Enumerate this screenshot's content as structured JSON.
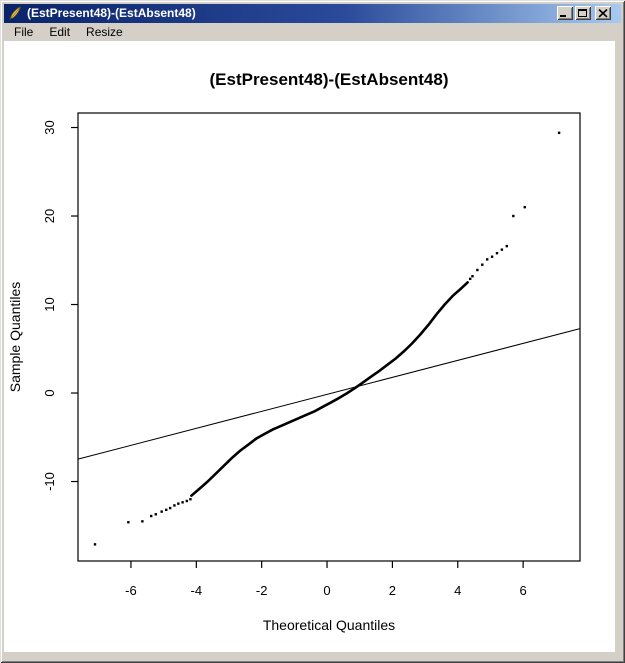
{
  "window": {
    "title": "(EstPresent48)-(EstAbsent48)",
    "icon": "quill-feather",
    "buttons": {
      "minimize": "minimize",
      "maximize": "maximize",
      "close": "close"
    }
  },
  "menu": {
    "items": [
      {
        "label": "File"
      },
      {
        "label": "Edit"
      },
      {
        "label": "Resize"
      }
    ]
  },
  "colors": {
    "titlebar_left": "#0A246A",
    "titlebar_right": "#A6CAF0",
    "chrome": "#D4D0C8",
    "canvas": "#FFFFFF",
    "plot_foreground": "#000000",
    "title_text": "#FFFFFF"
  },
  "chart_data": {
    "type": "scatter",
    "subtype": "normal-qq-plot",
    "title": "(EstPresent48)-(EstAbsent48)",
    "xlabel": "Theoretical Quantiles",
    "ylabel": "Sample Quantiles",
    "x_ticks": [
      -6,
      -4,
      -2,
      0,
      2,
      4,
      6
    ],
    "y_ticks": [
      -10,
      0,
      10,
      20,
      30
    ],
    "xlim": [
      -7.62,
      7.74
    ],
    "ylim": [
      -18.98,
      31.64
    ],
    "grid": false,
    "legend": null,
    "reference_line": {
      "slope": 0.96,
      "intercept": -0.15
    },
    "dense_curve": [
      [
        -4.15,
        -11.6
      ],
      [
        -3.9,
        -10.8
      ],
      [
        -3.65,
        -10.0
      ],
      [
        -3.4,
        -9.1
      ],
      [
        -3.15,
        -8.2
      ],
      [
        -2.9,
        -7.3
      ],
      [
        -2.65,
        -6.5
      ],
      [
        -2.4,
        -5.8
      ],
      [
        -2.15,
        -5.1
      ],
      [
        -1.9,
        -4.6
      ],
      [
        -1.65,
        -4.1
      ],
      [
        -1.4,
        -3.7
      ],
      [
        -1.15,
        -3.3
      ],
      [
        -0.9,
        -2.9
      ],
      [
        -0.65,
        -2.5
      ],
      [
        -0.4,
        -2.1
      ],
      [
        -0.15,
        -1.6
      ],
      [
        0.1,
        -1.1
      ],
      [
        0.35,
        -0.6
      ],
      [
        0.6,
        -0.05
      ],
      [
        0.85,
        0.55
      ],
      [
        1.1,
        1.2
      ],
      [
        1.35,
        1.85
      ],
      [
        1.6,
        2.5
      ],
      [
        1.85,
        3.2
      ],
      [
        2.1,
        3.9
      ],
      [
        2.35,
        4.7
      ],
      [
        2.6,
        5.6
      ],
      [
        2.85,
        6.6
      ],
      [
        3.1,
        7.7
      ],
      [
        3.35,
        8.9
      ],
      [
        3.6,
        10.0
      ],
      [
        3.85,
        11.0
      ],
      [
        4.1,
        11.8
      ],
      [
        4.3,
        12.5
      ]
    ],
    "lower_tail_points": [
      [
        -7.1,
        -17.1
      ],
      [
        -6.08,
        -14.6
      ],
      [
        -5.65,
        -14.5
      ],
      [
        -5.38,
        -13.9
      ],
      [
        -5.24,
        -13.7
      ],
      [
        -5.06,
        -13.4
      ],
      [
        -4.92,
        -13.2
      ],
      [
        -4.8,
        -13.0
      ],
      [
        -4.67,
        -12.7
      ],
      [
        -4.55,
        -12.5
      ],
      [
        -4.42,
        -12.35
      ],
      [
        -4.29,
        -12.2
      ],
      [
        -4.18,
        -12.0
      ]
    ],
    "upper_tail_points": [
      [
        4.38,
        12.9
      ],
      [
        4.45,
        13.2
      ],
      [
        4.6,
        13.9
      ],
      [
        4.75,
        14.5
      ],
      [
        4.9,
        15.1
      ],
      [
        5.05,
        15.4
      ],
      [
        5.2,
        15.8
      ],
      [
        5.35,
        16.2
      ],
      [
        5.5,
        16.6
      ],
      [
        5.7,
        20.0
      ],
      [
        6.05,
        21.0
      ],
      [
        7.1,
        29.4
      ]
    ]
  }
}
